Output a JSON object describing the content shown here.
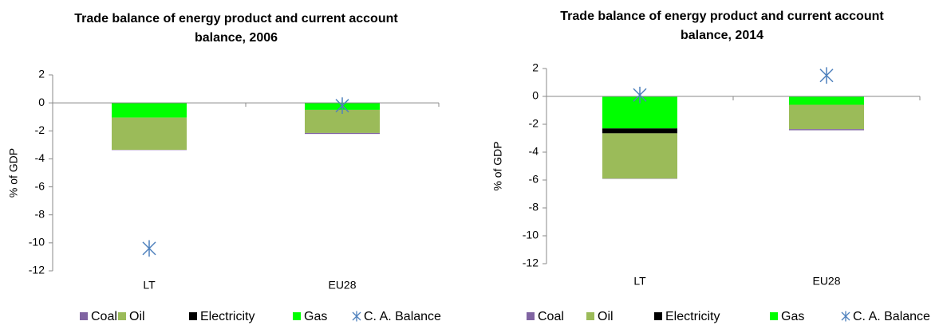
{
  "chart_data": [
    {
      "type": "stacked_bar_scatter",
      "title": [
        "Trade balance of energy product and current  account",
        "balance, 2006"
      ],
      "y_label": "% of GDP",
      "categories": [
        "LT",
        "EU28"
      ],
      "series": [
        {
          "name": "Coal",
          "color": "#8064a2",
          "values": [
            -0.02,
            -0.07
          ]
        },
        {
          "name": "Oil",
          "color": "#9bbb59",
          "values": [
            -2.3,
            -1.65
          ]
        },
        {
          "name": "Electricity",
          "color": "#000000",
          "values": [
            0,
            0
          ]
        },
        {
          "name": "Gas",
          "color": "#00ff00",
          "values": [
            -1.05,
            -0.5
          ]
        },
        {
          "name": "C. A. Balance",
          "color": "#4f81bd",
          "type": "scatter",
          "values": [
            -10.4,
            -0.2
          ]
        }
      ],
      "ylim": [
        -12,
        2
      ],
      "yticks": [
        2,
        0,
        -2,
        -4,
        -6,
        -8,
        -10,
        -12
      ]
    },
    {
      "type": "stacked_bar_scatter",
      "title": [
        "Trade balance of energy product and current account",
        "balance, 2014"
      ],
      "y_label": "% of GDP",
      "categories": [
        "LT",
        "EU28"
      ],
      "series": [
        {
          "name": "Coal",
          "color": "#8064a2",
          "values": [
            -0.02,
            -0.08
          ]
        },
        {
          "name": "Oil",
          "color": "#9bbb59",
          "values": [
            -3.25,
            -1.75
          ]
        },
        {
          "name": "Electricity",
          "color": "#000000",
          "values": [
            -0.35,
            0
          ]
        },
        {
          "name": "Gas",
          "color": "#00ff00",
          "values": [
            -2.3,
            -0.6
          ]
        },
        {
          "name": "C. A. Balance",
          "color": "#4f81bd",
          "type": "scatter",
          "values": [
            0.1,
            1.5
          ]
        }
      ],
      "ylim": [
        -12,
        2
      ],
      "yticks": [
        2,
        0,
        -2,
        -4,
        -6,
        -8,
        -10,
        -12
      ]
    }
  ]
}
